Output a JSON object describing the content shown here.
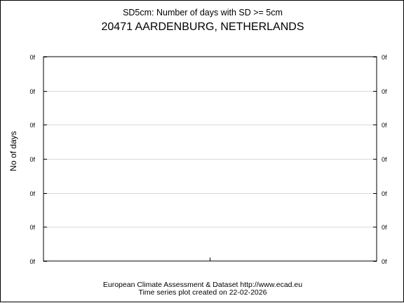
{
  "chart_data": {
    "type": "line",
    "title": "SD5cm: Number of days with SD >= 5cm",
    "subtitle": "20471 AARDENBURG, NETHERLANDS",
    "xlabel": "",
    "ylabel": "No of days",
    "y_tick_labels": [
      "0f",
      "0f",
      "0f",
      "0f",
      "0f",
      "0f",
      "0f"
    ],
    "x": [],
    "series": [],
    "grid": true,
    "grid_color": "#d8d8d8"
  },
  "footer": {
    "line1": "European Climate Assessment & Dataset  http://www.ecad.eu",
    "line2": "Time series plot created on 22-02-2026"
  }
}
